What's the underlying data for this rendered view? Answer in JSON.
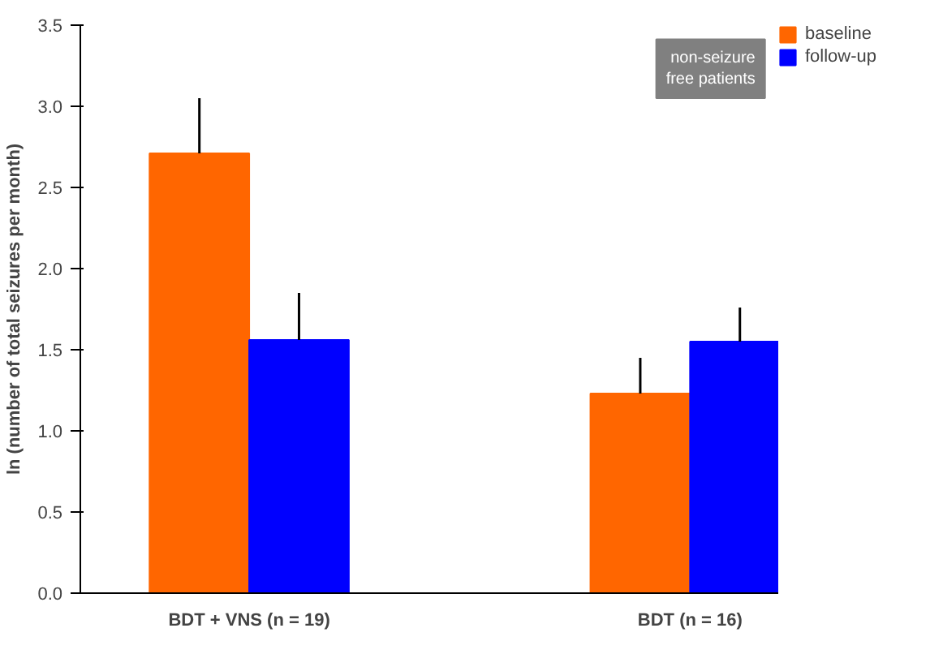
{
  "chart_data": {
    "type": "bar",
    "ylabel": "ln (number of total seizures per month)",
    "categories": [
      "BDT + VNS (n = 19)",
      "BDT (n = 16)"
    ],
    "series": [
      {
        "name": "baseline",
        "color": "#ff6600",
        "values": [
          2.71,
          1.23
        ],
        "errors": [
          [
            2.71,
            3.05
          ],
          [
            1.23,
            1.45
          ]
        ]
      },
      {
        "name": "follow-up",
        "color": "#0000ff",
        "values": [
          1.56,
          1.55
        ],
        "errors": [
          [
            1.56,
            1.85
          ],
          [
            1.55,
            1.76
          ]
        ]
      }
    ],
    "ylim": [
      0,
      3.5
    ],
    "yticks": [
      {
        "value": 0,
        "label": "0.0"
      },
      {
        "value": 0.5,
        "label": "0.5"
      },
      {
        "value": 1,
        "label": "1.0"
      },
      {
        "value": 1.5,
        "label": "1.5"
      },
      {
        "value": 2,
        "label": "2.0"
      },
      {
        "value": 2.5,
        "label": "2.5"
      },
      {
        "value": 3,
        "label": "3.0"
      },
      {
        "value": 3.5,
        "label": "3.5"
      }
    ],
    "grid": false,
    "legend": "top right",
    "annotations": [
      "non-seizure free patients"
    ]
  }
}
